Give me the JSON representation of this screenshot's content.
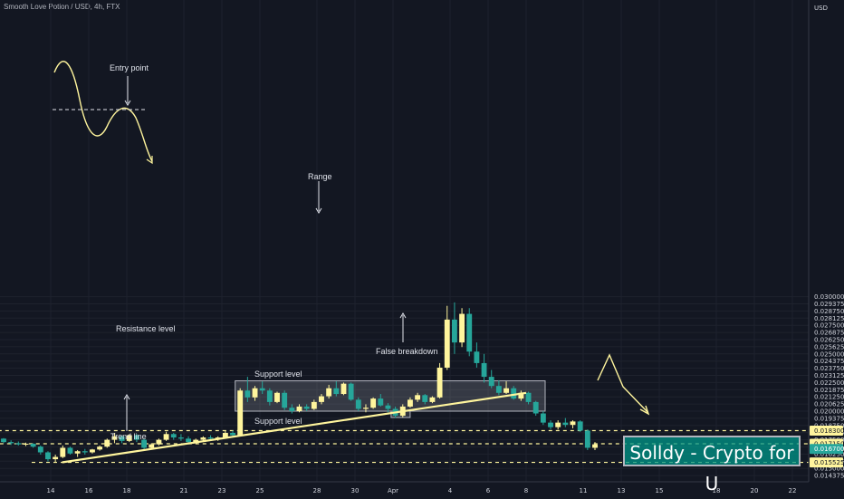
{
  "header": {
    "title": "Smooth Love Potion / USD, 4h, FTX"
  },
  "watermark": {
    "text": "Solldy - Crypto for U"
  },
  "chart_data": {
    "type": "candlestick",
    "title": "Smooth Love Potion / USD, 4h, FTX",
    "currency": "USD",
    "ylim": [
      0.0135,
      0.03
    ],
    "y_ticks": [
      "0.013750",
      "0.014375",
      "0.015000",
      "0.015625",
      "0.016250",
      "0.016875",
      "0.017500",
      "0.018125",
      "0.018750",
      "0.019375",
      "0.020000",
      "0.020625",
      "0.021250",
      "0.021875",
      "0.022500",
      "0.023125",
      "0.023750",
      "0.024375",
      "0.025000",
      "0.025625",
      "0.026250",
      "0.026875",
      "0.027500",
      "0.028125",
      "0.028750",
      "0.029375",
      "0.030000"
    ],
    "x_ticks": [
      {
        "label": "14",
        "pos": 14
      },
      {
        "label": "16",
        "pos": 16
      },
      {
        "label": "18",
        "pos": 18
      },
      {
        "label": "21",
        "pos": 21
      },
      {
        "label": "23",
        "pos": 23
      },
      {
        "label": "25",
        "pos": 25
      },
      {
        "label": "28",
        "pos": 28
      },
      {
        "label": "30",
        "pos": 30
      },
      {
        "label": "Apr",
        "pos": 32
      },
      {
        "label": "4",
        "pos": 35
      },
      {
        "label": "6",
        "pos": 37
      },
      {
        "label": "8",
        "pos": 39
      },
      {
        "label": "11",
        "pos": 42
      },
      {
        "label": "13",
        "pos": 44
      },
      {
        "label": "15",
        "pos": 46
      },
      {
        "label": "18",
        "pos": 49
      },
      {
        "label": "20",
        "pos": 51
      },
      {
        "label": "22",
        "pos": 53
      }
    ],
    "price_tags": [
      {
        "value": "0.018300",
        "bg": "#fff59d",
        "fg": "#131722"
      },
      {
        "value": "0.017150",
        "bg": "#fff59d",
        "fg": "#131722"
      },
      {
        "value": "0.016700",
        "bg": "#26a69a",
        "fg": "#ffffff"
      },
      {
        "value": "0.015525",
        "bg": "#fff59d",
        "fg": "#131722"
      }
    ],
    "levels": [
      {
        "value": 0.0183,
        "from": 7.8,
        "to": 55
      },
      {
        "value": 0.01715,
        "from": 9.8,
        "to": 55
      },
      {
        "value": 0.015525,
        "from": 13.0,
        "to": 55
      }
    ],
    "trend_line": {
      "x1": 14.6,
      "y1": 0.01553,
      "x2": 39.0,
      "y2": 0.0216
    },
    "range_box": {
      "x1": 23.7,
      "x2": 40.0,
      "y_low": 0.02,
      "y_high": 0.02265
    },
    "false_breakdown_box": {
      "x1": 31.9,
      "x2": 32.9,
      "y_low": 0.01945,
      "y_high": 0.02
    },
    "colors": {
      "bull": "#fff59d",
      "bear": "#26a69a",
      "level": "#fff59d",
      "annotation": "#fff59d"
    },
    "annotations": [
      {
        "text": "Entry point"
      },
      {
        "text": "Range"
      },
      {
        "text": "Resistance level"
      },
      {
        "text": "Support level"
      },
      {
        "text": "Support level"
      },
      {
        "text": "Trend line"
      },
      {
        "text": "False breakdown"
      }
    ],
    "candles": [
      [
        0.0176,
        0.01765,
        0.0172,
        0.0173
      ],
      [
        0.0173,
        0.01745,
        0.01705,
        0.0172
      ],
      [
        0.0172,
        0.01735,
        0.017,
        0.0171
      ],
      [
        0.0171,
        0.01725,
        0.01695,
        0.01715
      ],
      [
        0.01715,
        0.0172,
        0.0168,
        0.0169
      ],
      [
        0.0169,
        0.017,
        0.0162,
        0.0164
      ],
      [
        0.0164,
        0.0165,
        0.0156,
        0.0158
      ],
      [
        0.0158,
        0.0162,
        0.01555,
        0.016
      ],
      [
        0.016,
        0.017,
        0.0159,
        0.0168
      ],
      [
        0.0168,
        0.0169,
        0.0162,
        0.0163
      ],
      [
        0.0163,
        0.0166,
        0.016,
        0.0165
      ],
      [
        0.0165,
        0.0167,
        0.0162,
        0.0164
      ],
      [
        0.0164,
        0.0167,
        0.0163,
        0.01665
      ],
      [
        0.01665,
        0.017,
        0.01655,
        0.0169
      ],
      [
        0.0169,
        0.0176,
        0.0168,
        0.0175
      ],
      [
        0.0175,
        0.0181,
        0.0172,
        0.0178
      ],
      [
        0.0178,
        0.0179,
        0.0172,
        0.0174
      ],
      [
        0.0174,
        0.018,
        0.0173,
        0.0179
      ],
      [
        0.0179,
        0.018,
        0.0173,
        0.0175
      ],
      [
        0.0175,
        0.0176,
        0.0166,
        0.0168
      ],
      [
        0.0168,
        0.0172,
        0.0167,
        0.0171
      ],
      [
        0.0171,
        0.0176,
        0.017,
        0.0175
      ],
      [
        0.0175,
        0.0182,
        0.0174,
        0.018
      ],
      [
        0.018,
        0.0181,
        0.0175,
        0.0177
      ],
      [
        0.0177,
        0.018,
        0.0174,
        0.0176
      ],
      [
        0.0176,
        0.0178,
        0.0172,
        0.0173
      ],
      [
        0.0173,
        0.0176,
        0.0172,
        0.0175
      ],
      [
        0.0175,
        0.0178,
        0.0174,
        0.0177
      ],
      [
        0.0177,
        0.0179,
        0.0175,
        0.0176
      ],
      [
        0.0176,
        0.0178,
        0.0174,
        0.0177
      ],
      [
        0.0177,
        0.0183,
        0.0176,
        0.0181
      ],
      [
        0.0181,
        0.0183,
        0.0177,
        0.0179
      ],
      [
        0.0179,
        0.022,
        0.01785,
        0.0218
      ],
      [
        0.0218,
        0.023,
        0.0208,
        0.0212
      ],
      [
        0.0212,
        0.0222,
        0.0209,
        0.022
      ],
      [
        0.022,
        0.0226,
        0.0215,
        0.0218
      ],
      [
        0.0218,
        0.022,
        0.0205,
        0.0208
      ],
      [
        0.0208,
        0.0217,
        0.0207,
        0.0216
      ],
      [
        0.0216,
        0.0218,
        0.0201,
        0.0203
      ],
      [
        0.0203,
        0.0206,
        0.0198,
        0.02
      ],
      [
        0.02,
        0.0206,
        0.0199,
        0.0204
      ],
      [
        0.0204,
        0.0206,
        0.02,
        0.0202
      ],
      [
        0.0202,
        0.021,
        0.0201,
        0.0208
      ],
      [
        0.0208,
        0.0215,
        0.0206,
        0.0213
      ],
      [
        0.0213,
        0.0223,
        0.0211,
        0.022
      ],
      [
        0.022,
        0.0226,
        0.0213,
        0.0215
      ],
      [
        0.0215,
        0.0225,
        0.0214,
        0.0224
      ],
      [
        0.0224,
        0.0225,
        0.0209,
        0.021
      ],
      [
        0.021,
        0.0212,
        0.02,
        0.0202
      ],
      [
        0.0202,
        0.0206,
        0.0199,
        0.0203
      ],
      [
        0.0203,
        0.0212,
        0.0202,
        0.0211
      ],
      [
        0.0211,
        0.0215,
        0.0204,
        0.0205
      ],
      [
        0.0205,
        0.0207,
        0.0199,
        0.0202
      ],
      [
        0.0202,
        0.0204,
        0.0194,
        0.0196
      ],
      [
        0.0196,
        0.0206,
        0.01945,
        0.0204
      ],
      [
        0.0204,
        0.0212,
        0.0203,
        0.021
      ],
      [
        0.021,
        0.0216,
        0.0208,
        0.0214
      ],
      [
        0.0214,
        0.0215,
        0.0206,
        0.0208
      ],
      [
        0.0208,
        0.0213,
        0.0207,
        0.0212
      ],
      [
        0.0212,
        0.0242,
        0.0211,
        0.0238
      ],
      [
        0.0238,
        0.0292,
        0.0236,
        0.028
      ],
      [
        0.028,
        0.0295,
        0.025,
        0.026
      ],
      [
        0.026,
        0.029,
        0.0256,
        0.0285
      ],
      [
        0.0285,
        0.029,
        0.0248,
        0.0252
      ],
      [
        0.0252,
        0.026,
        0.0238,
        0.0242
      ],
      [
        0.0242,
        0.025,
        0.0225,
        0.023
      ],
      [
        0.023,
        0.0236,
        0.022,
        0.0222
      ],
      [
        0.0222,
        0.0227,
        0.0214,
        0.0216
      ],
      [
        0.0216,
        0.0226,
        0.0215,
        0.022
      ],
      [
        0.022,
        0.0222,
        0.021,
        0.0211
      ],
      [
        0.0211,
        0.0218,
        0.0209,
        0.0216
      ],
      [
        0.0216,
        0.0217,
        0.0206,
        0.0208
      ],
      [
        0.0208,
        0.0209,
        0.0196,
        0.0198
      ],
      [
        0.0198,
        0.02,
        0.0188,
        0.019
      ],
      [
        0.019,
        0.0192,
        0.0184,
        0.0186
      ],
      [
        0.0186,
        0.0192,
        0.0184,
        0.019
      ],
      [
        0.019,
        0.0194,
        0.0186,
        0.0188
      ],
      [
        0.0188,
        0.0192,
        0.0185,
        0.0191
      ],
      [
        0.0191,
        0.0192,
        0.0182,
        0.0183
      ],
      [
        0.0183,
        0.0184,
        0.0166,
        0.0168
      ],
      [
        0.0168,
        0.0173,
        0.0166,
        0.0171
      ]
    ]
  }
}
